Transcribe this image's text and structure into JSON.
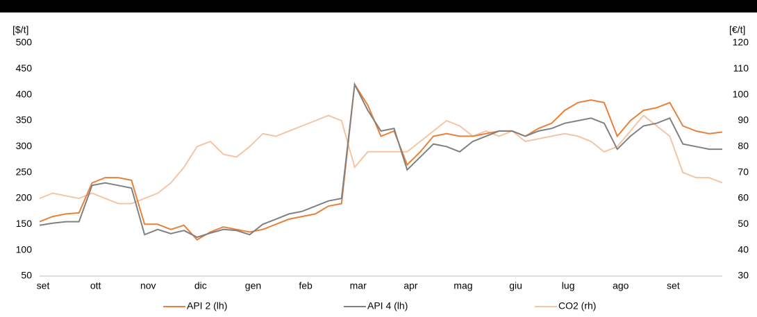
{
  "chart_data": {
    "type": "line",
    "y_label": "[$/t]",
    "y2_label": "[€/t]",
    "categories": [
      "set",
      null,
      null,
      null,
      "ott",
      null,
      null,
      null,
      "nov",
      null,
      null,
      null,
      "dic",
      null,
      null,
      null,
      "gen",
      null,
      null,
      null,
      "feb",
      null,
      null,
      null,
      "mar",
      null,
      null,
      null,
      "apr",
      null,
      null,
      null,
      "mag",
      null,
      null,
      null,
      "giu",
      null,
      null,
      null,
      "lug",
      null,
      null,
      null,
      "ago",
      null,
      null,
      null,
      "set",
      null,
      null,
      null,
      null
    ],
    "ylim": [
      50,
      500
    ],
    "yticks": [
      50,
      100,
      150,
      200,
      250,
      300,
      350,
      400,
      450,
      500
    ],
    "y2lim": [
      30,
      120
    ],
    "y2ticks": [
      30,
      40,
      50,
      60,
      70,
      80,
      90,
      100,
      110,
      120
    ],
    "series": [
      {
        "name": "API 2 (lh)",
        "color": "#e8803a",
        "values": [
          155,
          165,
          170,
          172,
          230,
          240,
          240,
          235,
          150,
          150,
          140,
          148,
          120,
          135,
          145,
          140,
          135,
          140,
          150,
          160,
          165,
          170,
          185,
          190,
          420,
          380,
          320,
          330,
          265,
          290,
          320,
          325,
          320,
          320,
          325,
          330,
          330,
          320,
          335,
          345,
          370,
          385,
          390,
          385,
          320,
          350,
          370,
          375,
          385,
          340,
          330,
          325,
          328
        ]
      },
      {
        "name": "API 4 (lh)",
        "color": "#808080",
        "values": [
          148,
          152,
          155,
          155,
          225,
          230,
          225,
          220,
          130,
          140,
          132,
          138,
          125,
          133,
          140,
          138,
          130,
          150,
          160,
          170,
          175,
          185,
          195,
          200,
          420,
          370,
          330,
          335,
          255,
          280,
          305,
          300,
          290,
          310,
          320,
          330,
          330,
          320,
          330,
          335,
          345,
          350,
          355,
          345,
          295,
          320,
          340,
          345,
          355,
          305,
          300,
          295,
          295
        ]
      },
      {
        "name": "CO2 (rh)",
        "color": "#f5c4a2",
        "axis": "y2",
        "values": [
          60,
          62,
          61,
          60,
          62,
          60,
          58,
          58,
          60,
          62,
          66,
          72,
          80,
          82,
          77,
          76,
          80,
          85,
          84,
          86,
          88,
          90,
          92,
          90,
          72,
          78,
          78,
          78,
          78,
          82,
          86,
          90,
          88,
          84,
          86,
          84,
          86,
          82,
          83,
          84,
          85,
          84,
          82,
          78,
          80,
          86,
          92,
          88,
          84,
          70,
          68,
          68,
          66
        ]
      }
    ]
  }
}
